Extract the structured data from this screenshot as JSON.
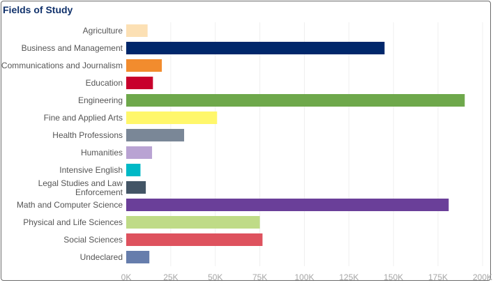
{
  "chart_data": {
    "type": "bar",
    "orientation": "horizontal",
    "title": "Fields of Study",
    "categories": [
      "Agriculture",
      "Business and Management",
      "Communications and Journalism",
      "Education",
      "Engineering",
      "Fine and Applied Arts",
      "Health Professions",
      "Humanities",
      "Intensive English",
      "Legal Studies and Law Enforcement",
      "Math and Computer Science",
      "Physical and Life Sciences",
      "Social Sciences",
      "Undeclared"
    ],
    "values": [
      12000,
      145000,
      20000,
      15000,
      190000,
      51000,
      32500,
      14500,
      8000,
      11000,
      181000,
      75000,
      76500,
      13000
    ],
    "colors": [
      "#fce0b4",
      "#00276b",
      "#f28c2e",
      "#c8002c",
      "#6ea84b",
      "#fff76b",
      "#7a8797",
      "#b9a3d3",
      "#00b9c6",
      "#435566",
      "#6a3f99",
      "#bfdb87",
      "#de525e",
      "#667dac"
    ],
    "xlim": [
      0,
      200000
    ],
    "xticks": [
      0,
      25000,
      50000,
      75000,
      100000,
      125000,
      150000,
      175000,
      200000
    ],
    "xtick_labels": [
      "0K",
      "25K",
      "50K",
      "75K",
      "100K",
      "125K",
      "150K",
      "175K",
      "200K"
    ],
    "grid": true,
    "xlabel": "",
    "ylabel": ""
  }
}
